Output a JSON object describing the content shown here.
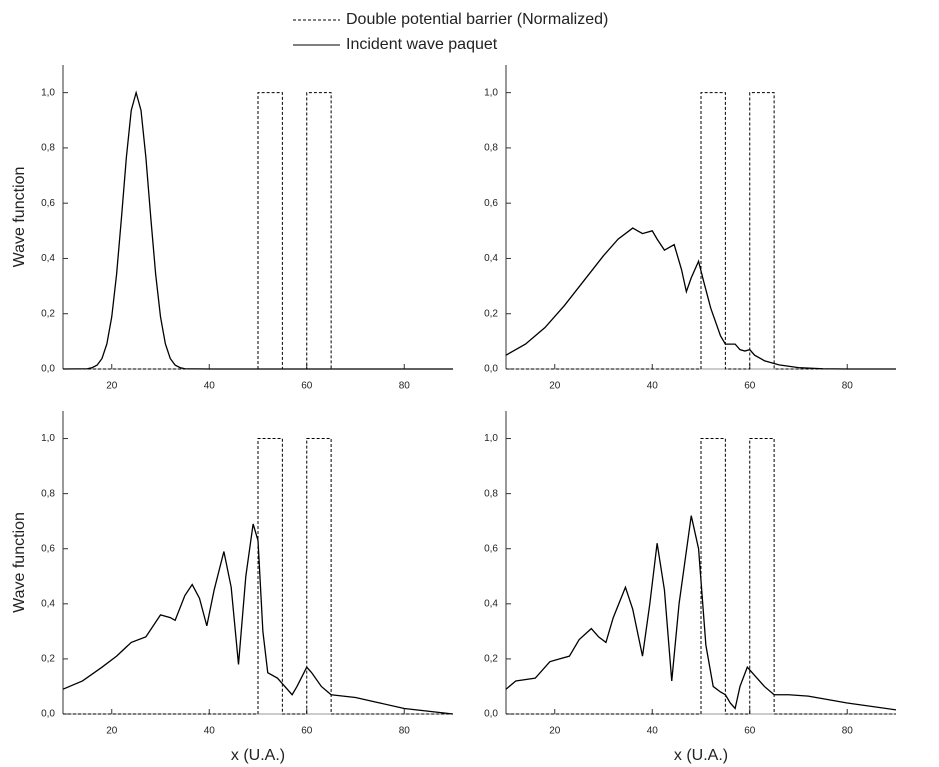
{
  "chart_data": [
    {
      "type": "line",
      "ylabel": "Wave function",
      "xlim": [
        10,
        90
      ],
      "ylim": [
        0,
        1.1
      ],
      "xticks": [
        20,
        40,
        60,
        80
      ],
      "yticks": [
        {
          "value": 0,
          "label": "0,0"
        },
        {
          "value": 0.2,
          "label": "0,2"
        },
        {
          "value": 0.4,
          "label": "0,4"
        },
        {
          "value": 0.6,
          "label": "0,6"
        },
        {
          "value": 0.8,
          "label": "0,8"
        },
        {
          "value": 1.0,
          "label": "1,0"
        }
      ],
      "series": [
        {
          "name": "Double potential barrier (Normalized)",
          "color": "#000000",
          "linestyle": "dashed",
          "x": [
            10,
            50,
            50,
            55,
            55,
            60,
            60,
            65,
            65,
            90
          ],
          "values": [
            0,
            0,
            1,
            1,
            0,
            0,
            1,
            1,
            0,
            0
          ]
        },
        {
          "name": "Incident wave paquet",
          "color": "#000000",
          "linestyle": "solid",
          "x": [
            10,
            15,
            16,
            17,
            18,
            19,
            20,
            21,
            22,
            23,
            24,
            25,
            26,
            27,
            28,
            29,
            30,
            31,
            32,
            33,
            34,
            35,
            40,
            90
          ],
          "values": [
            0,
            0.001,
            0.005,
            0.014,
            0.038,
            0.091,
            0.189,
            0.344,
            0.549,
            0.766,
            0.936,
            1,
            0.936,
            0.766,
            0.549,
            0.344,
            0.189,
            0.091,
            0.038,
            0.014,
            0.005,
            0.001,
            0,
            0
          ]
        }
      ]
    },
    {
      "type": "line",
      "xlim": [
        10,
        90
      ],
      "ylim": [
        0,
        1.1
      ],
      "xticks": [
        20,
        40,
        60,
        80
      ],
      "yticks": [
        {
          "value": 0,
          "label": "0,0"
        },
        {
          "value": 0.2,
          "label": "0,2"
        },
        {
          "value": 0.4,
          "label": "0,4"
        },
        {
          "value": 0.6,
          "label": "0,6"
        },
        {
          "value": 0.8,
          "label": "0,8"
        },
        {
          "value": 1.0,
          "label": "1,0"
        }
      ],
      "series": [
        {
          "name": "Double potential barrier (Normalized)",
          "color": "#000000",
          "linestyle": "dashed",
          "x": [
            10,
            50,
            50,
            55,
            55,
            60,
            60,
            65,
            65,
            90
          ],
          "values": [
            0,
            0,
            1,
            1,
            0,
            0,
            1,
            1,
            0,
            0
          ]
        },
        {
          "name": "Incident wave paquet",
          "color": "#000000",
          "linestyle": "solid",
          "x": [
            10,
            14,
            18,
            22,
            26,
            30,
            33,
            36,
            38,
            40,
            41,
            42.5,
            44.5,
            46,
            47,
            48,
            49.5,
            50.5,
            52,
            54,
            55,
            57,
            58,
            59,
            60,
            61,
            63,
            66,
            70,
            75,
            80,
            90
          ],
          "values": [
            0.05,
            0.09,
            0.15,
            0.23,
            0.32,
            0.41,
            0.47,
            0.51,
            0.49,
            0.5,
            0.47,
            0.43,
            0.45,
            0.36,
            0.28,
            0.33,
            0.39,
            0.32,
            0.22,
            0.12,
            0.09,
            0.09,
            0.07,
            0.065,
            0.07,
            0.05,
            0.03,
            0.015,
            0.005,
            0.001,
            0,
            0
          ]
        }
      ]
    },
    {
      "type": "line",
      "ylabel": "Wave function",
      "xlabel": "x (U.A.)",
      "xlim": [
        10,
        90
      ],
      "ylim": [
        0,
        1.1
      ],
      "xticks": [
        20,
        40,
        60,
        80
      ],
      "yticks": [
        {
          "value": 0,
          "label": "0,0"
        },
        {
          "value": 0.2,
          "label": "0,2"
        },
        {
          "value": 0.4,
          "label": "0,4"
        },
        {
          "value": 0.6,
          "label": "0,6"
        },
        {
          "value": 0.8,
          "label": "0,8"
        },
        {
          "value": 1.0,
          "label": "1,0"
        }
      ],
      "series": [
        {
          "name": "Double potential barrier (Normalized)",
          "color": "#000000",
          "linestyle": "dashed",
          "x": [
            10,
            50,
            50,
            55,
            55,
            60,
            60,
            65,
            65,
            90
          ],
          "values": [
            0,
            0,
            1,
            1,
            0,
            0,
            1,
            1,
            0,
            0
          ]
        },
        {
          "name": "Incident wave paquet",
          "color": "#000000",
          "linestyle": "solid",
          "x": [
            10,
            14,
            18,
            21,
            24,
            27,
            30,
            32,
            33,
            35,
            36.5,
            38,
            39.5,
            41,
            43,
            44.5,
            46,
            47.5,
            49,
            50,
            51,
            52,
            54,
            55,
            57,
            58,
            60,
            61,
            63,
            65,
            70,
            75,
            80,
            85,
            90
          ],
          "values": [
            0.09,
            0.12,
            0.17,
            0.21,
            0.26,
            0.28,
            0.36,
            0.35,
            0.34,
            0.43,
            0.47,
            0.42,
            0.32,
            0.45,
            0.59,
            0.46,
            0.18,
            0.5,
            0.69,
            0.63,
            0.3,
            0.15,
            0.13,
            0.11,
            0.07,
            0.1,
            0.17,
            0.15,
            0.1,
            0.07,
            0.06,
            0.04,
            0.02,
            0.01,
            0
          ]
        }
      ]
    },
    {
      "type": "line",
      "xlabel": "x (U.A.)",
      "xlim": [
        10,
        90
      ],
      "ylim": [
        0,
        1.1
      ],
      "xticks": [
        20,
        40,
        60,
        80
      ],
      "yticks": [
        {
          "value": 0,
          "label": "0,0"
        },
        {
          "value": 0.2,
          "label": "0,2"
        },
        {
          "value": 0.4,
          "label": "0,4"
        },
        {
          "value": 0.6,
          "label": "0,6"
        },
        {
          "value": 0.8,
          "label": "0,8"
        },
        {
          "value": 1.0,
          "label": "1,0"
        }
      ],
      "series": [
        {
          "name": "Double potential barrier (Normalized)",
          "color": "#000000",
          "linestyle": "dashed",
          "x": [
            10,
            50,
            50,
            55,
            55,
            60,
            60,
            65,
            65,
            90
          ],
          "values": [
            0,
            0,
            1,
            1,
            0,
            0,
            1,
            1,
            0,
            0
          ]
        },
        {
          "name": "Incident wave paquet",
          "color": "#000000",
          "linestyle": "solid",
          "x": [
            10,
            12,
            16,
            19,
            21,
            23,
            25,
            27.5,
            29,
            30.5,
            32,
            34.5,
            36,
            38,
            39.5,
            41,
            42.5,
            44,
            45.5,
            48,
            49.5,
            51,
            52.5,
            54,
            55,
            56,
            57,
            58,
            59.5,
            61,
            63,
            65,
            68,
            72,
            80,
            90
          ],
          "values": [
            0.09,
            0.12,
            0.13,
            0.19,
            0.2,
            0.21,
            0.27,
            0.31,
            0.28,
            0.26,
            0.35,
            0.46,
            0.38,
            0.21,
            0.4,
            0.62,
            0.45,
            0.12,
            0.4,
            0.72,
            0.6,
            0.25,
            0.1,
            0.08,
            0.07,
            0.04,
            0.02,
            0.1,
            0.17,
            0.14,
            0.1,
            0.07,
            0.07,
            0.065,
            0.04,
            0.015
          ]
        }
      ]
    }
  ]
}
